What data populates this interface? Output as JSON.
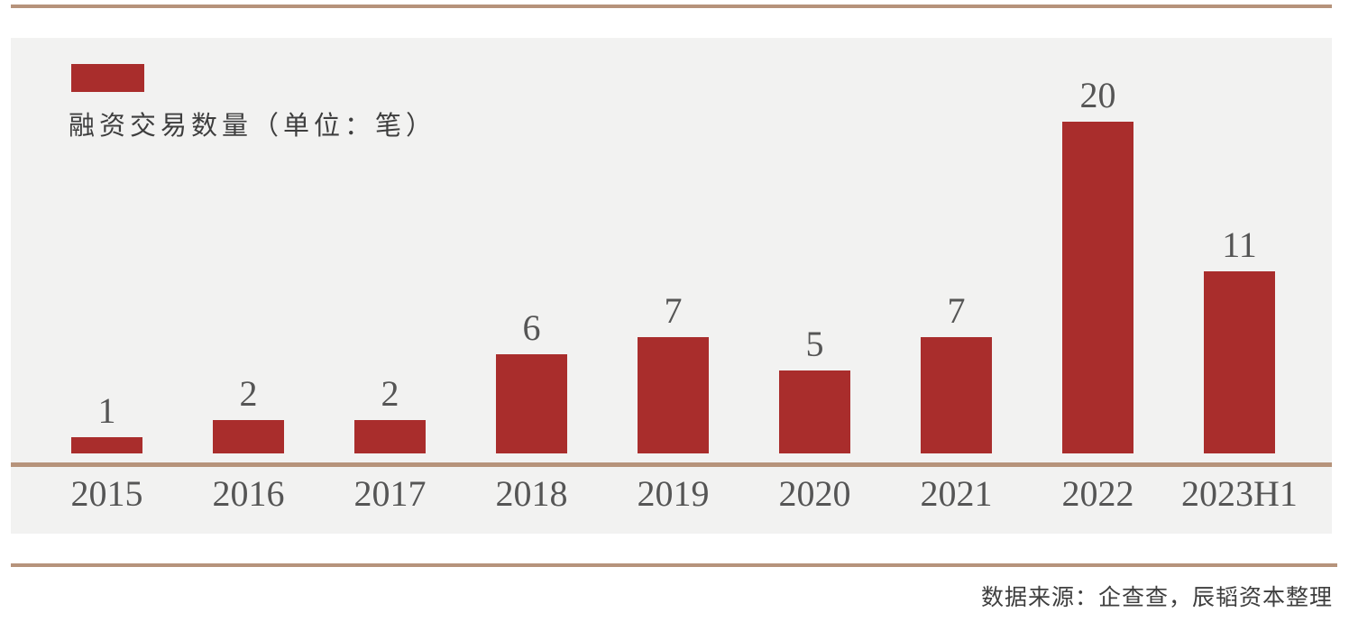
{
  "chart_data": {
    "type": "bar",
    "legend_label": "融资交易数量（单位：笔）",
    "categories": [
      "2015",
      "2016",
      "2017",
      "2018",
      "2019",
      "2020",
      "2021",
      "2022",
      "2023H1"
    ],
    "values": [
      1,
      2,
      2,
      6,
      7,
      5,
      7,
      20,
      11
    ],
    "ylim": [
      0,
      20
    ],
    "grid": false,
    "legend_position": "top-left",
    "value_labels_shown": true,
    "bar_color": "#A92D2C",
    "label_color": "#555555"
  },
  "source_text": "数据来源：企查查，辰韬资本整理",
  "colors": {
    "accent_red": "#A92D2C",
    "divider_tan": "#B6937B",
    "panel_gray": "#F2F2F1",
    "text_dark": "#3e3e3e"
  }
}
